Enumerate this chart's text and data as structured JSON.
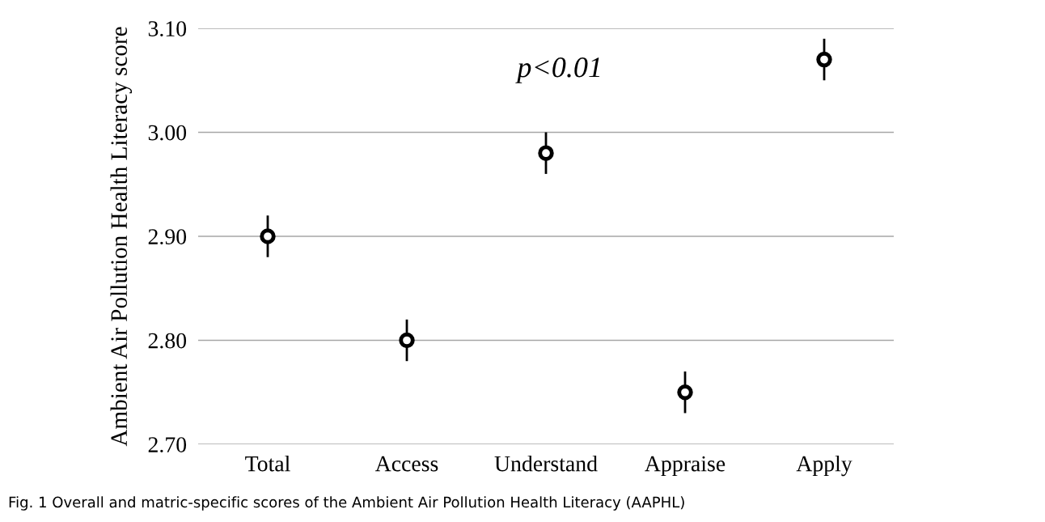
{
  "chart_data": {
    "type": "scatter",
    "categories": [
      "Total",
      "Access",
      "Understand",
      "Appraise",
      "Apply"
    ],
    "series": [
      {
        "color": "#000000",
        "values": [
          2.9,
          2.8,
          2.98,
          2.75,
          3.07
        ],
        "errors": [
          0.02,
          0.02,
          0.02,
          0.02,
          0.02
        ]
      }
    ],
    "ylabel": "Ambient Air Pollution Health Literacy score",
    "ylim": [
      2.7,
      3.1
    ],
    "yticks": [
      {
        "value": 2.7,
        "label": "2.70"
      },
      {
        "value": 2.8,
        "label": "2.80"
      },
      {
        "value": 2.9,
        "label": "2.90"
      },
      {
        "value": 3.0,
        "label": "3.00"
      },
      {
        "value": 3.1,
        "label": "3.10"
      }
    ],
    "grid": "y",
    "marker": "circle",
    "annotations": [
      "p<0.01",
      "Fig. 1 Overall and matric-specific scores of the Ambient Air Pollution Health Literacy (AAPHL)"
    ]
  }
}
